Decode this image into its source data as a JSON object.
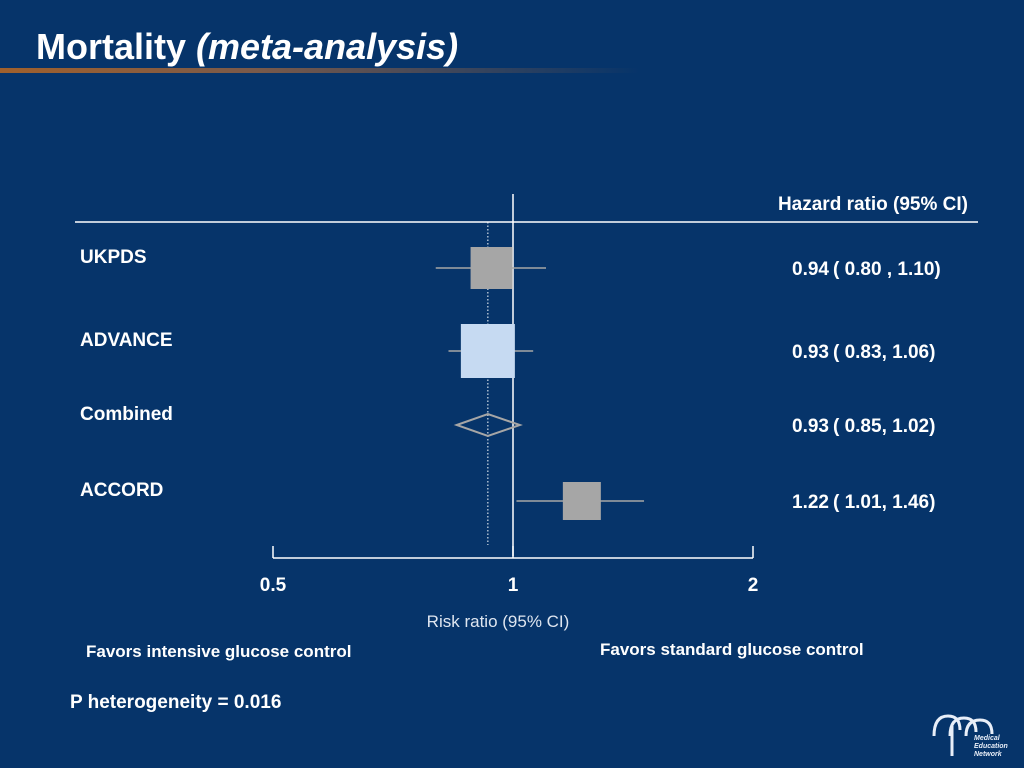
{
  "slide": {
    "title_main": "Mortality",
    "title_sub": "(meta-analysis)"
  },
  "chart_data": {
    "type": "forest",
    "value_header": "Hazard ratio (95% CI)",
    "xlabel": "Risk ratio (95% CI)",
    "x_scale": "log",
    "x_ticks": [
      0.5,
      1,
      2
    ],
    "x_tick_labels": [
      "0.5",
      "1",
      "2"
    ],
    "reference_line": 1,
    "pooled_line": 0.93,
    "rows": [
      {
        "study": "UKPDS",
        "hr": 0.94,
        "lower": 0.8,
        "upper": 1.1,
        "hr_text": "0.94",
        "ci_text": "( 0.80 , 1.10)",
        "marker": "square",
        "color": "#a6a6a6"
      },
      {
        "study": "ADVANCE",
        "hr": 0.93,
        "lower": 0.83,
        "upper": 1.06,
        "hr_text": "0.93",
        "ci_text": "( 0.83, 1.06)",
        "marker": "square",
        "color": "#c6daf2"
      },
      {
        "study": "Combined",
        "hr": 0.93,
        "lower": 0.85,
        "upper": 1.02,
        "hr_text": "0.93",
        "ci_text": "( 0.85, 1.02)",
        "marker": "diamond",
        "color": "#a6a6a6"
      },
      {
        "study": "ACCORD",
        "hr": 1.22,
        "lower": 1.01,
        "upper": 1.46,
        "hr_text": "1.22",
        "ci_text": "( 1.01, 1.46)",
        "marker": "square",
        "color": "#a6a6a6"
      }
    ],
    "favors_left": "Favors intensive glucose control",
    "favors_right": "Favors standard glucose control"
  },
  "footnote": "P heterogeneity = 0.016",
  "logo": {
    "lines": [
      "Medical",
      "Education",
      "Network"
    ],
    "icon": "men-logo-icon"
  },
  "colors": {
    "background": "#06346a",
    "text": "#ffffff",
    "ci_line": "#a6a6a6"
  }
}
